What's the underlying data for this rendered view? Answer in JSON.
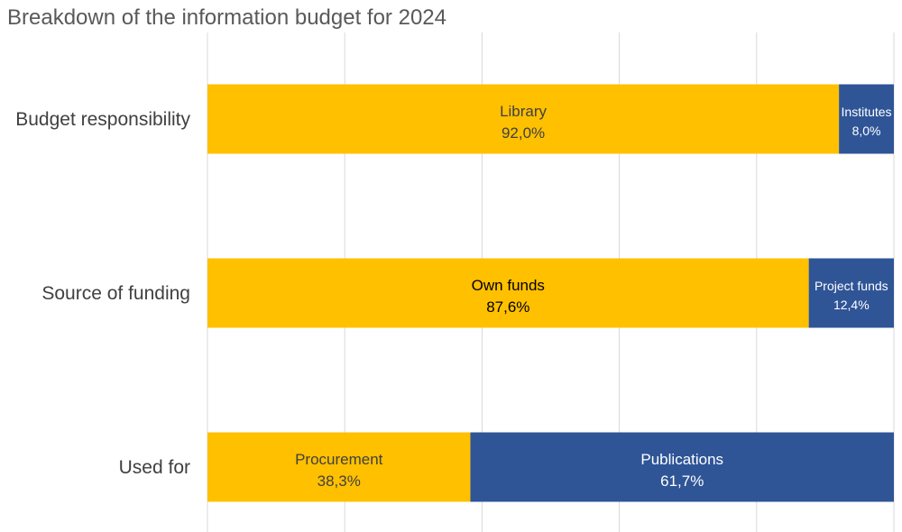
{
  "chart_data": {
    "type": "bar",
    "orientation": "horizontal",
    "stacked": true,
    "title": "Breakdown of the information budget for 2024",
    "categories": [
      "Budget responsibility",
      "Source of funding",
      "Used for"
    ],
    "xlim": [
      0,
      100
    ],
    "grid": true,
    "segments": [
      [
        {
          "name": "Library",
          "value": 92.0,
          "label": "92,0%",
          "color": "#FFC000"
        },
        {
          "name": "Institutes",
          "value": 8.0,
          "label": "8,0%",
          "color": "#2F5597"
        }
      ],
      [
        {
          "name": "Own funds",
          "value": 87.6,
          "label": "87,6%",
          "color": "#FFC000"
        },
        {
          "name": "Project funds",
          "value": 12.4,
          "label": "12,4%",
          "color": "#2F5597"
        }
      ],
      [
        {
          "name": "Procurement",
          "value": 38.3,
          "label": "38,3%",
          "color": "#FFC000"
        },
        {
          "name": "Publications",
          "value": 61.7,
          "label": "61,7%",
          "color": "#2F5597"
        }
      ]
    ]
  }
}
